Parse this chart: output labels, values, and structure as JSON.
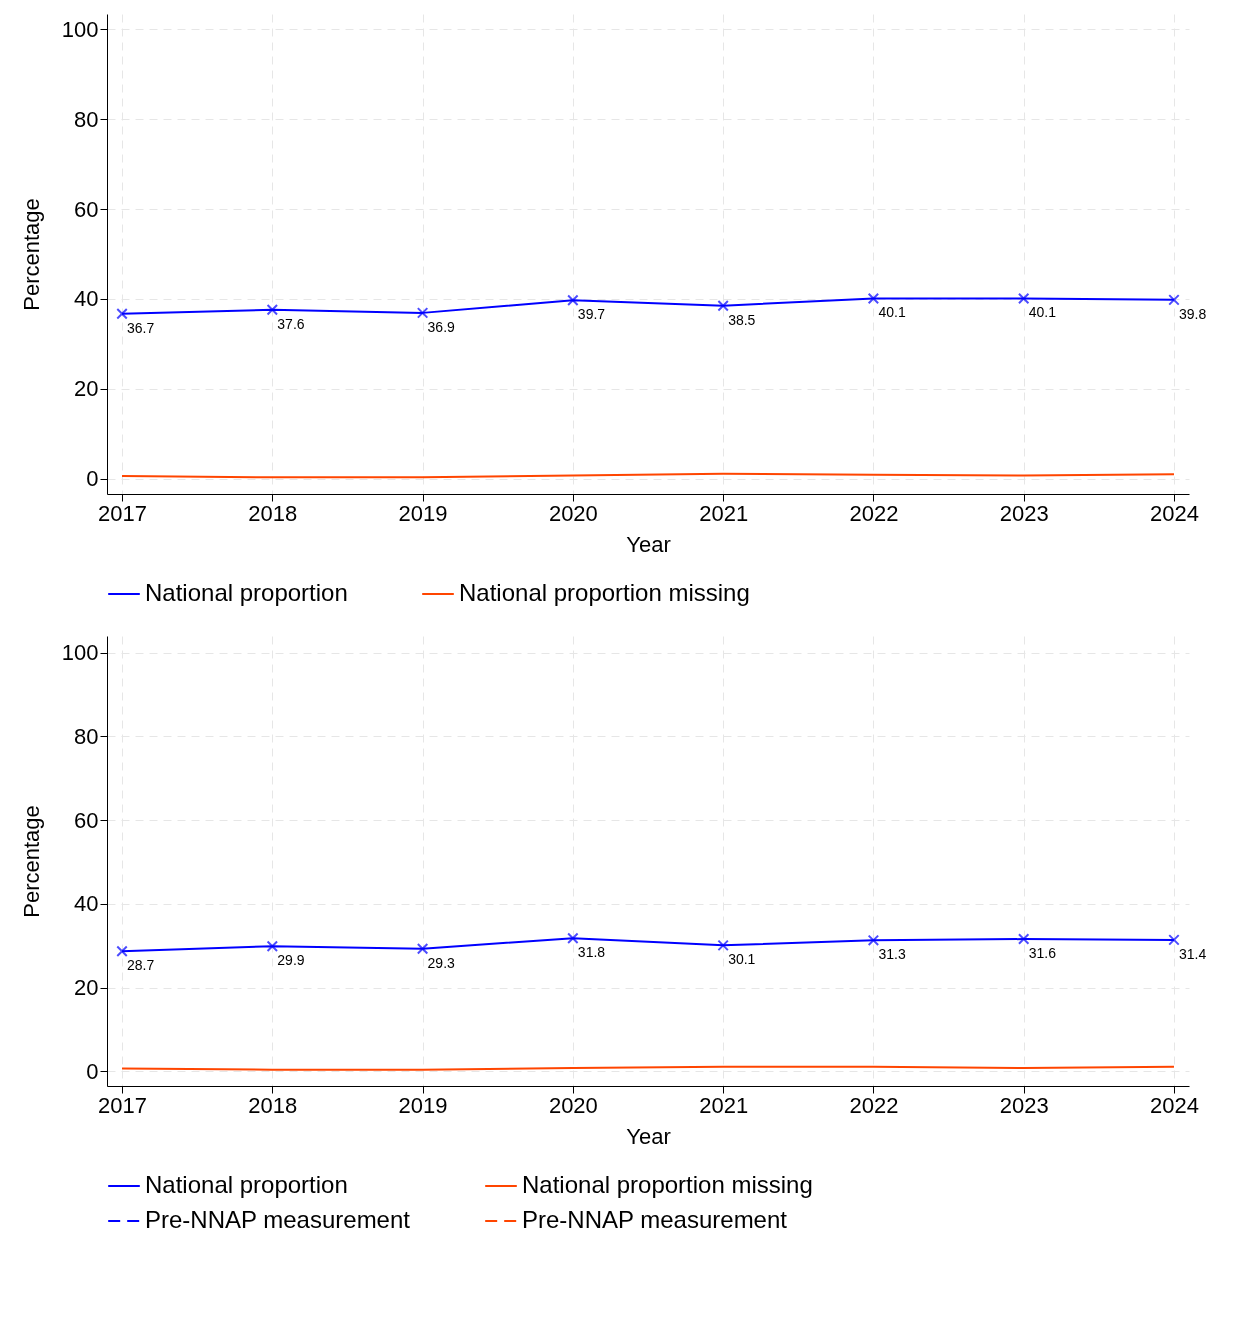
{
  "chart_data": [
    {
      "type": "line",
      "xlabel": "Year",
      "ylabel": "Percentage",
      "x": [
        2017,
        2018,
        2019,
        2020,
        2021,
        2022,
        2023,
        2024
      ],
      "xlim": [
        2016.9,
        2024.1
      ],
      "xticks": [
        2017,
        2018,
        2019,
        2020,
        2021,
        2022,
        2023,
        2024
      ],
      "ylim": [
        -3.4,
        103.4
      ],
      "yticks": [
        0,
        20,
        40,
        60,
        80,
        100
      ],
      "grid": true,
      "legend": "bottom",
      "series": [
        {
          "name": "National proportion",
          "color": "#0000ff",
          "marker": "cross",
          "line_style": "solid",
          "values": [
            36.7,
            37.6,
            36.9,
            39.7,
            38.5,
            40.1,
            40.1,
            39.8
          ],
          "value_labels": [
            "36.7",
            "37.6",
            "36.9",
            "39.7",
            "38.5",
            "40.1",
            "40.1",
            "39.8"
          ]
        },
        {
          "name": "National proportion missing",
          "color": "#ff4500",
          "marker": "none",
          "line_style": "solid",
          "values": [
            0.6,
            0.3,
            0.3,
            0.7,
            1.1,
            0.9,
            0.7,
            1.0
          ]
        }
      ]
    },
    {
      "type": "line",
      "xlabel": "Year",
      "ylabel": "Percentage",
      "x": [
        2017,
        2018,
        2019,
        2020,
        2021,
        2022,
        2023,
        2024
      ],
      "xlim": [
        2016.9,
        2024.1
      ],
      "xticks": [
        2017,
        2018,
        2019,
        2020,
        2021,
        2022,
        2023,
        2024
      ],
      "ylim": [
        -3.5,
        104
      ],
      "yticks": [
        0,
        20,
        40,
        60,
        80,
        100
      ],
      "grid": true,
      "legend": "bottom",
      "series": [
        {
          "name": "National proportion",
          "color": "#0000ff",
          "marker": "cross",
          "line_style": "solid",
          "values": [
            28.7,
            29.9,
            29.3,
            31.8,
            30.1,
            31.3,
            31.6,
            31.4
          ],
          "value_labels": [
            "28.7",
            "29.9",
            "29.3",
            "31.8",
            "30.1",
            "31.3",
            "31.6",
            "31.4"
          ]
        },
        {
          "name": "National proportion missing",
          "color": "#ff4500",
          "marker": "none",
          "line_style": "solid",
          "values": [
            0.7,
            0.4,
            0.4,
            0.8,
            1.1,
            1.1,
            0.8,
            1.1
          ]
        },
        {
          "name": "Pre-NNAP measurement",
          "color": "#0000ff",
          "marker": "none",
          "line_style": "dashed",
          "values": [
            null,
            null,
            null,
            null,
            null,
            null,
            null,
            null
          ]
        },
        {
          "name": "Pre-NNAP measurement",
          "color": "#ff4500",
          "marker": "none",
          "line_style": "dashed",
          "values": [
            null,
            null,
            null,
            null,
            null,
            null,
            null,
            null
          ]
        }
      ]
    }
  ]
}
